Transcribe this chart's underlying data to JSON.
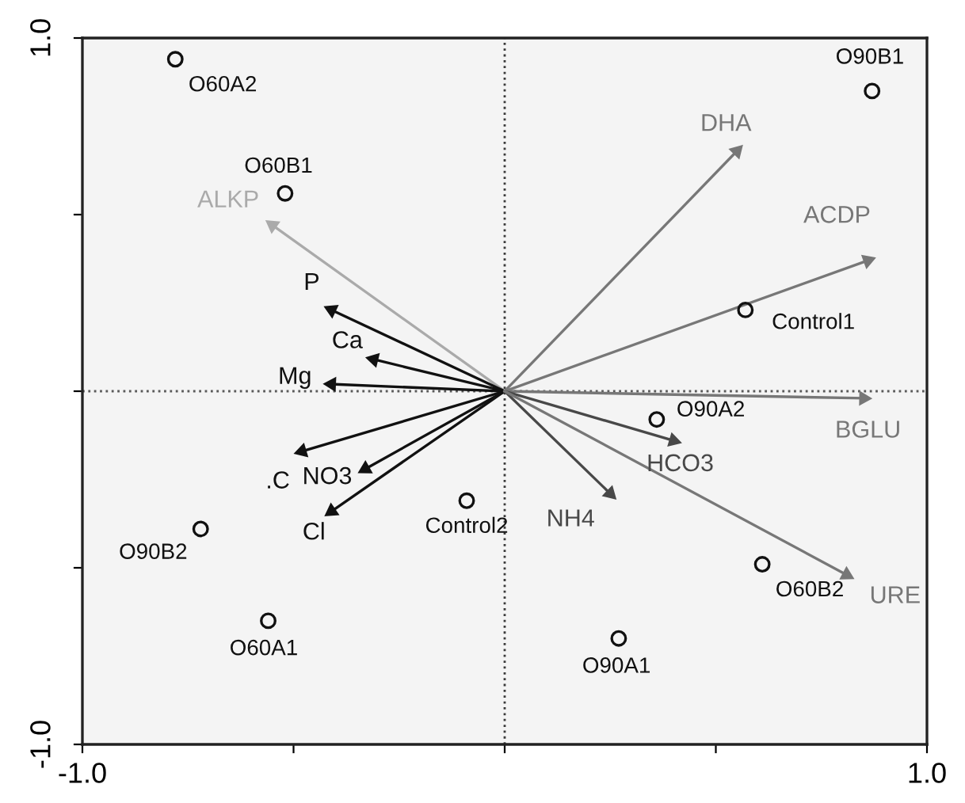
{
  "chart_data": {
    "type": "scatter",
    "xlim": [
      -1.0,
      1.0
    ],
    "ylim": [
      -1.0,
      1.0
    ],
    "xticks": [
      {
        "value": -1.0,
        "label": "-1.0"
      },
      {
        "value": -0.5,
        "label": null
      },
      {
        "value": 0,
        "label": null
      },
      {
        "value": 0.5,
        "label": null
      },
      {
        "value": 1.0,
        "label": "1.0"
      }
    ],
    "yticks": [
      {
        "value": -1.0,
        "label": "-1.0"
      },
      {
        "value": -0.5,
        "label": null
      },
      {
        "value": 0,
        "label": null
      },
      {
        "value": 0.5,
        "label": null
      },
      {
        "value": 1.0,
        "label": "1.0"
      }
    ],
    "marker": "circle",
    "ref_lines": [
      {
        "axis": "x",
        "value": 0,
        "color": "#3a3a3a",
        "line_style": "dotted"
      },
      {
        "axis": "y",
        "value": 0,
        "color": "#5a5a5a",
        "line_style": "dotted"
      }
    ],
    "series": [
      {
        "color": "#111111",
        "x": [
          -0.78,
          -0.52,
          0.87,
          0.57,
          0.36,
          -0.09,
          -0.72,
          -0.56,
          0.27,
          0.61
        ],
        "values": [
          0.94,
          0.56,
          0.85,
          0.23,
          -0.08,
          -0.31,
          -0.39,
          -0.65,
          -0.7,
          -0.49
        ]
      },
      {
        "type": "line",
        "name": "ALKP",
        "color": "#aaaaaa",
        "marker": "triangle",
        "x": [
          0,
          -0.55
        ],
        "values": [
          0,
          0.47
        ]
      },
      {
        "type": "line",
        "name": "P",
        "color": "#111111",
        "marker": "triangle",
        "x": [
          0,
          -0.41
        ],
        "values": [
          0,
          0.23
        ]
      },
      {
        "type": "line",
        "name": "Ca",
        "color": "#111111",
        "marker": "triangle",
        "x": [
          0,
          -0.31
        ],
        "values": [
          0,
          0.09
        ]
      },
      {
        "type": "line",
        "name": "Mg",
        "color": "#111111",
        "marker": "triangle",
        "x": [
          0,
          -0.41
        ],
        "values": [
          0,
          0.02
        ]
      },
      {
        "type": "line",
        "name": ".C",
        "color": "#111111",
        "marker": "triangle",
        "x": [
          0,
          -0.48
        ],
        "values": [
          0,
          -0.17
        ]
      },
      {
        "type": "line",
        "name": "NO3",
        "color": "#111111",
        "marker": "triangle",
        "x": [
          0,
          -0.33
        ],
        "values": [
          0,
          -0.22
        ]
      },
      {
        "type": "line",
        "name": "Cl",
        "color": "#111111",
        "marker": "triangle",
        "x": [
          0,
          -0.41
        ],
        "values": [
          0,
          -0.34
        ]
      },
      {
        "type": "line",
        "name": "DHA",
        "color": "#777777",
        "marker": "triangle",
        "x": [
          0,
          0.55
        ],
        "values": [
          0,
          0.68
        ]
      },
      {
        "type": "line",
        "name": "ACDP",
        "color": "#777777",
        "marker": "triangle",
        "x": [
          0,
          0.86
        ],
        "values": [
          0,
          0.37
        ]
      },
      {
        "type": "line",
        "name": "BGLU",
        "color": "#777777",
        "marker": "triangle",
        "x": [
          0,
          0.85
        ],
        "values": [
          0,
          -0.02
        ]
      },
      {
        "type": "line",
        "name": "HCO3",
        "color": "#484848",
        "marker": "triangle",
        "x": [
          0,
          0.4
        ],
        "values": [
          0,
          -0.14
        ]
      },
      {
        "type": "line",
        "name": "NH4",
        "color": "#484848",
        "marker": "triangle",
        "x": [
          0,
          0.25
        ],
        "values": [
          0,
          -0.29
        ]
      },
      {
        "type": "line",
        "name": "URE",
        "color": "#777777",
        "marker": "triangle",
        "x": [
          0,
          0.81
        ],
        "values": [
          0,
          -0.52
        ]
      }
    ],
    "annotations": [
      {
        "text": "O60A2",
        "x": -0.78,
        "y": 0.94
      },
      {
        "text": "O60B1",
        "x": -0.52,
        "y": 0.56
      },
      {
        "text": "O90B1",
        "x": 0.87,
        "y": 0.85
      },
      {
        "text": "Control1",
        "x": 0.57,
        "y": 0.23
      },
      {
        "text": "O90A2",
        "x": 0.36,
        "y": -0.08
      },
      {
        "text": "Control2",
        "x": -0.09,
        "y": -0.31
      },
      {
        "text": "O90B2",
        "x": -0.72,
        "y": -0.39
      },
      {
        "text": "O60A1",
        "x": -0.56,
        "y": -0.65
      },
      {
        "text": "O90A1",
        "x": 0.27,
        "y": -0.7
      },
      {
        "text": "O60B2",
        "x": 0.61,
        "y": -0.49
      }
    ]
  }
}
